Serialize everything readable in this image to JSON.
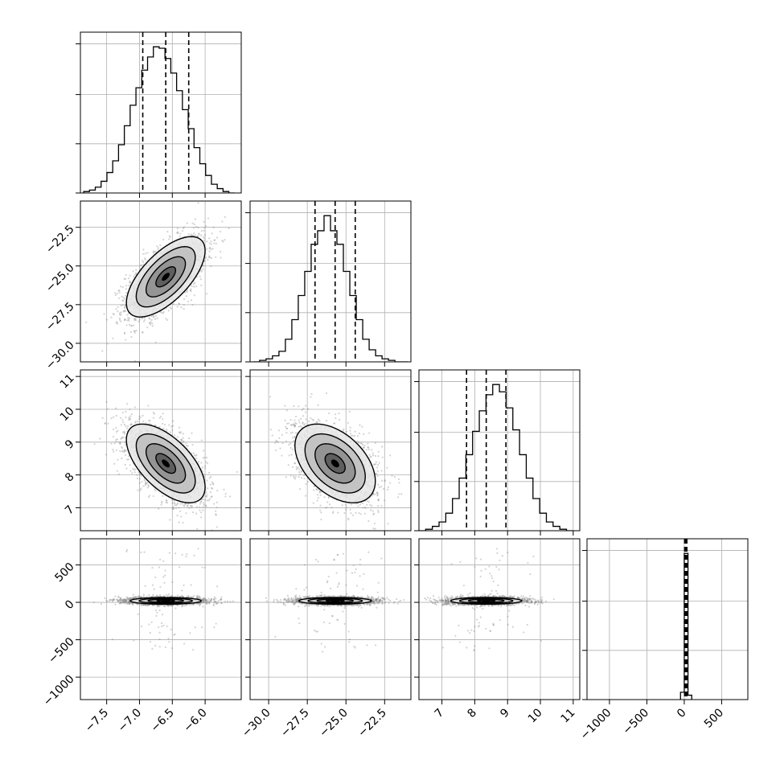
{
  "chart_data": {
    "type": "corner",
    "grid": true,
    "parameters": [
      {
        "xlim": [
          -7.9,
          -5.45
        ],
        "ticks": [
          -7.5,
          -7.0,
          -6.5,
          -6.0
        ],
        "tick_labels": [
          "−7.5",
          "−7.0",
          "−6.5",
          "−6.0"
        ],
        "quantiles": [
          -6.95,
          -6.6,
          -6.25
        ],
        "hist_range": [
          -7.85,
          -5.55
        ],
        "histogram": [
          0.01,
          0.02,
          0.04,
          0.08,
          0.14,
          0.22,
          0.33,
          0.46,
          0.6,
          0.72,
          0.84,
          0.93,
          1.0,
          0.99,
          0.92,
          0.82,
          0.7,
          0.57,
          0.44,
          0.31,
          0.2,
          0.12,
          0.06,
          0.03,
          0.01,
          0.0
        ]
      },
      {
        "xlim": [
          -31.2,
          -20.8
        ],
        "ticks": [
          -30.0,
          -27.5,
          -25.0,
          -22.5
        ],
        "tick_labels": [
          "−30.0",
          "−27.5",
          "−25.0",
          "−22.5"
        ],
        "quantiles": [
          -27.0,
          -25.7,
          -24.4
        ],
        "hist_range": [
          -31.0,
          -21.0
        ],
        "histogram": [
          0.0,
          0.01,
          0.02,
          0.04,
          0.07,
          0.15,
          0.28,
          0.44,
          0.6,
          0.78,
          0.87,
          0.97,
          0.87,
          0.78,
          0.6,
          0.44,
          0.28,
          0.15,
          0.08,
          0.04,
          0.02,
          0.01,
          0.0,
          0.0
        ]
      },
      {
        "xlim": [
          6.3,
          11.2
        ],
        "ticks": [
          7,
          8,
          9,
          10,
          11
        ],
        "tick_labels": [
          "7",
          "8",
          "9",
          "10",
          "11"
        ],
        "quantiles": [
          7.75,
          8.35,
          8.95
        ],
        "hist_range": [
          6.3,
          11.0
        ],
        "histogram": [
          0.0,
          0.01,
          0.03,
          0.06,
          0.12,
          0.22,
          0.36,
          0.52,
          0.68,
          0.82,
          0.93,
          1.0,
          0.95,
          0.84,
          0.69,
          0.52,
          0.36,
          0.22,
          0.12,
          0.06,
          0.03,
          0.01,
          0.0
        ]
      },
      {
        "xlim": [
          -1300,
          850
        ],
        "ticks": [
          -1000,
          -500,
          0,
          500
        ],
        "tick_labels": [
          "−1000",
          "−500",
          "0",
          "500"
        ],
        "quantiles": [
          5,
          20,
          35
        ],
        "hist_range": [
          -50,
          100
        ],
        "histogram": [
          0.05,
          1.0,
          0.03
        ]
      }
    ],
    "covariance_ellipses": {
      "1-0": {
        "mean": [
          -6.6,
          -25.7
        ],
        "sd": [
          0.3,
          1.3
        ],
        "corr": 0.65
      },
      "2-0": {
        "mean": [
          -6.6,
          8.35
        ],
        "sd": [
          0.3,
          0.6
        ],
        "corr": -0.6
      },
      "2-1": {
        "mean": [
          -25.7,
          8.35
        ],
        "sd": [
          1.3,
          0.6
        ],
        "corr": -0.45
      },
      "3-0": {
        "mean": [
          -6.6,
          20
        ],
        "sd": [
          0.3,
          25
        ],
        "corr": 0.0
      },
      "3-1": {
        "mean": [
          -25.7,
          20
        ],
        "sd": [
          1.3,
          25
        ],
        "corr": 0.0
      },
      "3-2": {
        "mean": [
          8.35,
          20
        ],
        "sd": [
          0.6,
          25
        ],
        "corr": 0.0
      }
    },
    "contour_levels_sigma": [
      0.5,
      1.0,
      1.5,
      2.0
    ]
  }
}
